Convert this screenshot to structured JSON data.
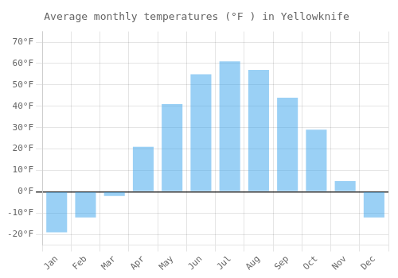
{
  "chart_data": {
    "type": "bar",
    "title": "Average monthly temperatures (°F ) in Yellowknife",
    "categories": [
      "Jan",
      "Feb",
      "Mar",
      "Apr",
      "May",
      "Jun",
      "Jul",
      "Aug",
      "Sep",
      "Oct",
      "Nov",
      "Dec"
    ],
    "values": [
      -19,
      -12,
      -2,
      21,
      41,
      55,
      61,
      57,
      44,
      29,
      5,
      -12
    ],
    "ylim": [
      -25,
      75
    ],
    "yticks": [
      {
        "value": -20,
        "label": "-20°F"
      },
      {
        "value": -10,
        "label": "-10°F"
      },
      {
        "value": 0,
        "label": "0°F"
      },
      {
        "value": 10,
        "label": "10°F"
      },
      {
        "value": 20,
        "label": "20°F"
      },
      {
        "value": 30,
        "label": "30°F"
      },
      {
        "value": 40,
        "label": "40°F"
      },
      {
        "value": 50,
        "label": "50°F"
      },
      {
        "value": 60,
        "label": "60°F"
      },
      {
        "value": 70,
        "label": "70°F"
      }
    ],
    "grid": true
  }
}
